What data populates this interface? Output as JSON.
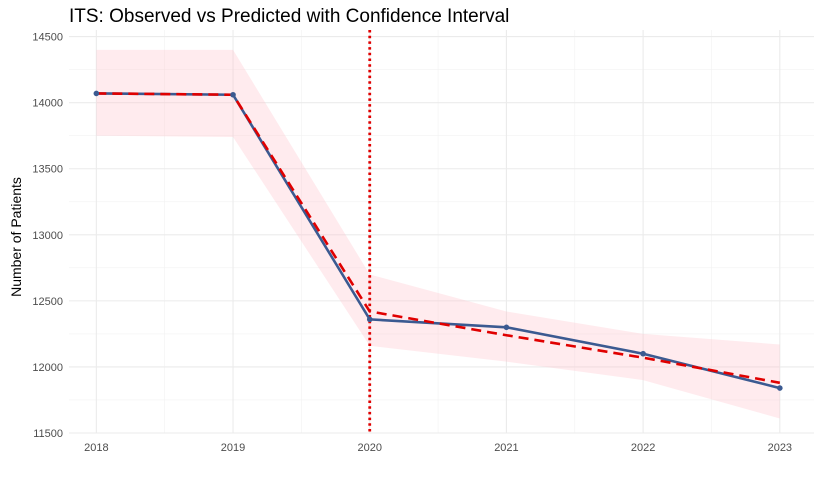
{
  "chart_data": {
    "type": "line",
    "title": "ITS: Observed vs Predicted with Confidence Interval",
    "xlabel": "",
    "ylabel": "Number of Patients",
    "x": [
      2018,
      2019,
      2020,
      2021,
      2022,
      2023
    ],
    "x_ticks": [
      "2018",
      "2019",
      "2020",
      "2021",
      "2022",
      "2023"
    ],
    "y_ticks": [
      "11500",
      "12000",
      "12500",
      "13000",
      "13500",
      "14000",
      "14500"
    ],
    "xlim": [
      2017.8,
      2023.25
    ],
    "ylim": [
      11500,
      14550
    ],
    "grid": true,
    "legend": "none",
    "series": [
      {
        "role": "observed",
        "style": "solid line with point markers",
        "color": "#3b5a91",
        "values": [
          14070,
          14060,
          12360,
          12300,
          12100,
          11840
        ]
      },
      {
        "role": "predicted",
        "style": "dashed line",
        "color": "#e00000",
        "values": [
          14070,
          14060,
          12420,
          12240,
          12070,
          11880
        ]
      }
    ],
    "confidence_band": {
      "color": "#ffc0cb",
      "lower": [
        13750,
        13740,
        12160,
        12040,
        11900,
        11610
      ],
      "upper": [
        14400,
        14400,
        12700,
        12420,
        12250,
        12170
      ]
    },
    "reference_line": {
      "x": 2020,
      "style": "dotted vertical line",
      "color": "#e00000"
    }
  }
}
